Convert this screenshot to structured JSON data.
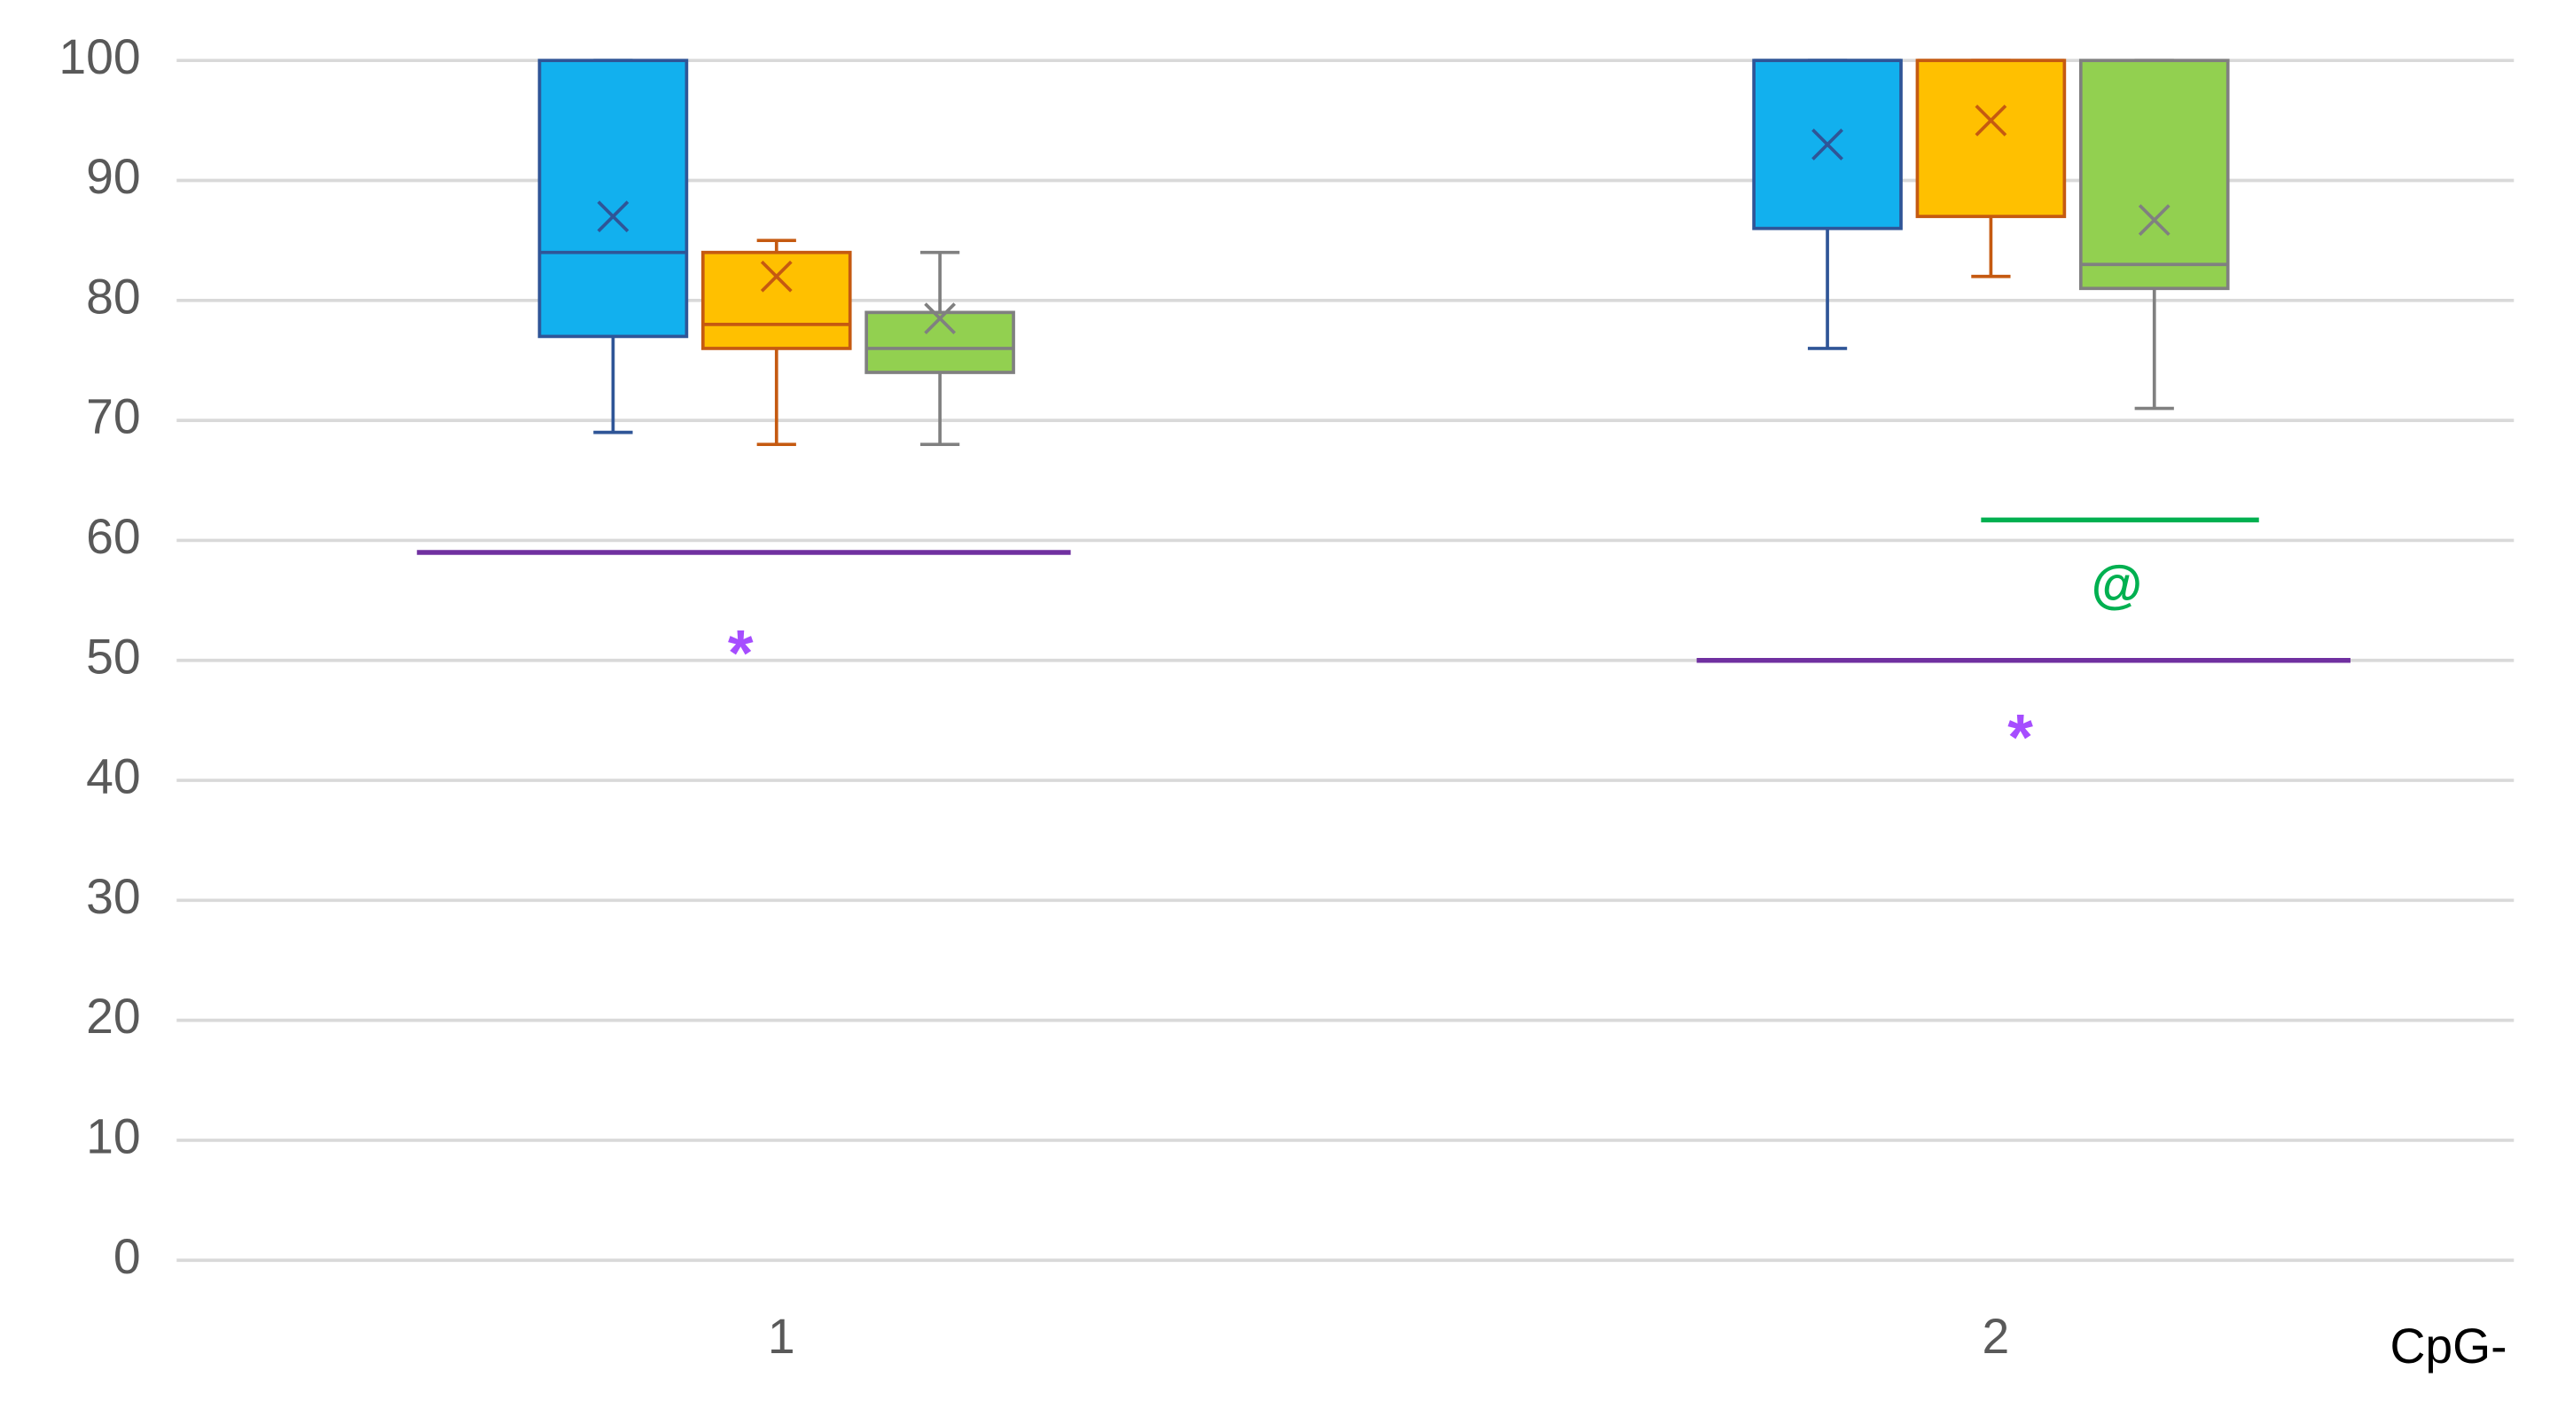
{
  "chart_data": {
    "type": "box",
    "categories": [
      "1",
      "2"
    ],
    "x_label": "CpG-",
    "ylim": [
      0,
      100
    ],
    "yticks": [
      0,
      10,
      20,
      30,
      40,
      50,
      60,
      70,
      80,
      90,
      100
    ],
    "grid": true,
    "series": [
      {
        "color": "#12b0ee",
        "stroke": "#2f5597",
        "boxes": [
          {
            "min": 69,
            "q1": 77,
            "median": 84,
            "q3": 100,
            "max": 100,
            "mean": 87
          },
          {
            "min": 76,
            "q1": 86,
            "median": 100,
            "q3": 100,
            "max": 100,
            "mean": 93
          }
        ]
      },
      {
        "color": "#ffc000",
        "stroke": "#c55a11",
        "boxes": [
          {
            "min": 68,
            "q1": 76,
            "median": 78,
            "q3": 84,
            "max": 85,
            "mean": 82
          },
          {
            "min": 82,
            "q1": 87,
            "median": 100,
            "q3": 100,
            "max": 100,
            "mean": 95
          }
        ]
      },
      {
        "color": "#92d050",
        "stroke": "#808080",
        "boxes": [
          {
            "min": 68,
            "q1": 74,
            "median": 76,
            "q3": 79,
            "max": 84,
            "mean": 78.5
          },
          {
            "min": 71,
            "q1": 81,
            "median": 83,
            "q3": 100,
            "max": 100,
            "mean": 86.7
          }
        ]
      }
    ],
    "annotations": [
      {
        "text": "*",
        "line_y": 59,
        "text_y": 51,
        "line_color": "#7030a0",
        "text_color": "#a64dff"
      },
      {
        "text": "*",
        "line_y": 50,
        "text_y": 44,
        "line_color": "#7030a0",
        "text_color": "#a64dff"
      },
      {
        "text": "@",
        "line_y": 61.7,
        "text_y": 56,
        "line_color": "#00b050",
        "text_color": "#00b050"
      }
    ]
  }
}
